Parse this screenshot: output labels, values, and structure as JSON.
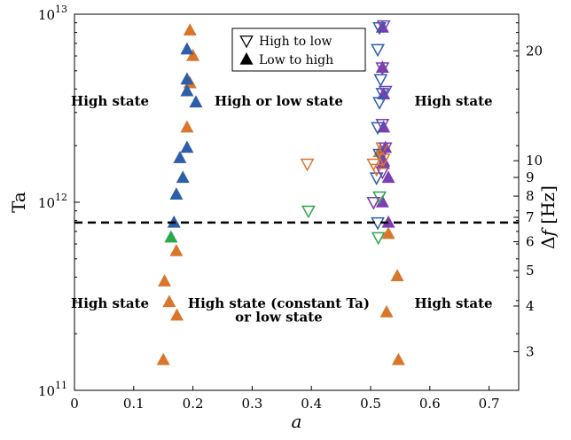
{
  "chart_data": {
    "type": "scatter",
    "xlabel": "a",
    "ylabel": "Ta",
    "y2label": "Δf [Hz]",
    "xlim": [
      0,
      0.75
    ],
    "ylim": [
      100000000000.0,
      10000000000000.0
    ],
    "yscale": "log",
    "y2scale": "log",
    "y2lim": [
      2.35,
      25.2
    ],
    "grid": false,
    "legend_position": "top-center",
    "x_ticks": [
      {
        "v": 0,
        "label": "0"
      },
      {
        "v": 0.1,
        "label": "0.1"
      },
      {
        "v": 0.2,
        "label": "0.2"
      },
      {
        "v": 0.3,
        "label": "0.3"
      },
      {
        "v": 0.4,
        "label": "0.4"
      },
      {
        "v": 0.5,
        "label": "0.5"
      },
      {
        "v": 0.6,
        "label": "0.6"
      },
      {
        "v": 0.7,
        "label": "0.7"
      }
    ],
    "y_ticks": [
      {
        "v": 100000000000.0,
        "base": "10",
        "exp": "11"
      },
      {
        "v": 1000000000000.0,
        "base": "10",
        "exp": "12"
      },
      {
        "v": 10000000000000.0,
        "base": "10",
        "exp": "13"
      }
    ],
    "y2_ticks": [
      {
        "v": 3,
        "label": "3"
      },
      {
        "v": 4,
        "label": "4"
      },
      {
        "v": 5,
        "label": "5"
      },
      {
        "v": 6,
        "label": "6"
      },
      {
        "v": 7,
        "label": "7"
      },
      {
        "v": 8,
        "label": "8"
      },
      {
        "v": 9,
        "label": "9"
      },
      {
        "v": 10,
        "label": "10"
      },
      {
        "v": 20,
        "label": "20"
      }
    ],
    "threshold": {
      "y": 780000000000.0,
      "style": "dashed"
    },
    "legend": [
      {
        "label": "High to low",
        "marker": "triangle-down-open"
      },
      {
        "label": "Low to high",
        "marker": "triangle-up-filled"
      }
    ],
    "annotations": [
      {
        "text": "High state",
        "x": 0.06,
        "y": 3450000000000.0
      },
      {
        "text": "High or low state",
        "x": 0.345,
        "y": 3450000000000.0
      },
      {
        "text": "High state",
        "x": 0.64,
        "y": 3450000000000.0
      },
      {
        "text": "High state",
        "x": 0.06,
        "y": 290000000000.0
      },
      {
        "text": "High state (constant Ta)",
        "x": 0.345,
        "y": 290000000000.0
      },
      {
        "text": "or low state",
        "x": 0.345,
        "y": 245000000000.0
      },
      {
        "text": "High state",
        "x": 0.64,
        "y": 290000000000.0
      }
    ],
    "colors": {
      "orange": "#d9762b",
      "blue": "#2c5fa8",
      "green": "#2aa84a",
      "purple": "#7b3fb0",
      "axis": "#000000"
    },
    "series": [
      {
        "color": "orange",
        "marker": "triangle-up-filled",
        "points": [
          [
            0.195,
            8200000000000.0
          ],
          [
            0.2,
            6000000000000.0
          ],
          [
            0.195,
            4300000000000.0
          ],
          [
            0.19,
            2500000000000.0
          ],
          [
            0.172,
            550000000000.0
          ],
          [
            0.152,
            380000000000.0
          ],
          [
            0.16,
            295000000000.0
          ],
          [
            0.173,
            250000000000.0
          ],
          [
            0.15,
            145000000000.0
          ],
          [
            0.53,
            680000000000.0
          ],
          [
            0.545,
            405000000000.0
          ],
          [
            0.527,
            260000000000.0
          ],
          [
            0.547,
            145000000000.0
          ],
          [
            0.522,
            1600000000000.0
          ],
          [
            0.515,
            1850000000000.0
          ]
        ]
      },
      {
        "color": "blue",
        "marker": "triangle-up-filled",
        "points": [
          [
            0.19,
            6500000000000.0
          ],
          [
            0.19,
            4500000000000.0
          ],
          [
            0.19,
            3900000000000.0
          ],
          [
            0.205,
            3400000000000.0
          ],
          [
            0.19,
            1950000000000.0
          ],
          [
            0.178,
            1720000000000.0
          ],
          [
            0.183,
            1350000000000.0
          ],
          [
            0.172,
            1100000000000.0
          ],
          [
            0.168,
            780000000000.0
          ]
        ]
      },
      {
        "color": "green",
        "marker": "triangle-up-filled",
        "points": [
          [
            0.163,
            650000000000.0
          ]
        ]
      },
      {
        "color": "purple",
        "marker": "triangle-up-filled",
        "points": [
          [
            0.52,
            8500000000000.0
          ],
          [
            0.52,
            5200000000000.0
          ],
          [
            0.522,
            3750000000000.0
          ],
          [
            0.522,
            2500000000000.0
          ],
          [
            0.525,
            1950000000000.0
          ],
          [
            0.522,
            1650000000000.0
          ],
          [
            0.53,
            1350000000000.0
          ],
          [
            0.52,
            1000000000000.0
          ],
          [
            0.53,
            780000000000.0
          ]
        ]
      },
      {
        "color": "blue",
        "marker": "triangle-down-open",
        "points": [
          [
            0.515,
            8500000000000.0
          ],
          [
            0.512,
            6500000000000.0
          ],
          [
            0.517,
            4500000000000.0
          ],
          [
            0.52,
            3800000000000.0
          ],
          [
            0.515,
            3400000000000.0
          ],
          [
            0.512,
            2500000000000.0
          ],
          [
            0.515,
            1800000000000.0
          ],
          [
            0.51,
            1350000000000.0
          ],
          [
            0.512,
            780000000000.0
          ]
        ]
      },
      {
        "color": "orange",
        "marker": "triangle-down-open",
        "points": [
          [
            0.393,
            1600000000000.0
          ],
          [
            0.505,
            1600000000000.0
          ],
          [
            0.51,
            1500000000000.0
          ],
          [
            0.52,
            1950000000000.0
          ],
          [
            0.522,
            1700000000000.0
          ],
          [
            0.505,
            1000000000000.0
          ]
        ]
      },
      {
        "color": "green",
        "marker": "triangle-down-open",
        "points": [
          [
            0.395,
            900000000000.0
          ],
          [
            0.515,
            1070000000000.0
          ],
          [
            0.513,
            650000000000.0
          ]
        ]
      },
      {
        "color": "purple",
        "marker": "triangle-down-open",
        "points": [
          [
            0.522,
            8700000000000.0
          ],
          [
            0.52,
            5200000000000.0
          ],
          [
            0.525,
            3900000000000.0
          ],
          [
            0.52,
            2600000000000.0
          ],
          [
            0.525,
            1950000000000.0
          ],
          [
            0.52,
            1450000000000.0
          ],
          [
            0.505,
            1000000000000.0
          ]
        ]
      }
    ]
  }
}
